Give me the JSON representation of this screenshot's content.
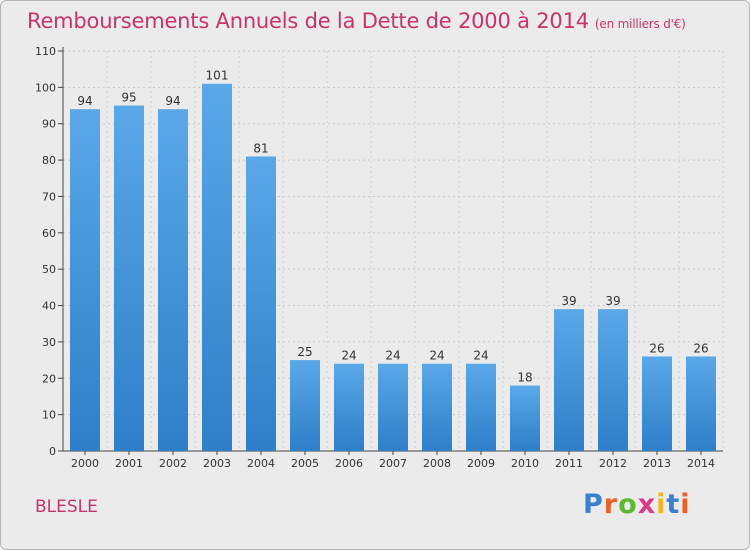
{
  "chart_data": {
    "type": "bar",
    "title": "Remboursements Annuels de la Dette de 2000 à 2014",
    "subtitle": "(en milliers d'€)",
    "categories": [
      "2000",
      "2001",
      "2002",
      "2003",
      "2004",
      "2005",
      "2006",
      "2007",
      "2008",
      "2009",
      "2010",
      "2011",
      "2012",
      "2013",
      "2014"
    ],
    "values": [
      94,
      95,
      94,
      101,
      81,
      25,
      24,
      24,
      24,
      24,
      18,
      39,
      39,
      26,
      26
    ],
    "ylim": [
      0,
      110
    ],
    "yticks": [
      0,
      10,
      20,
      30,
      40,
      50,
      60,
      70,
      80,
      90,
      100,
      110
    ],
    "grid": true,
    "data_labels": true,
    "bar_color": "#5aa8e8",
    "bar_color_dark": "#2e7fc8"
  },
  "commune": "BLESLE",
  "logo": {
    "text": "Proxiti",
    "colors": [
      "#3a7fd0",
      "#e8622a",
      "#5cb82e",
      "#d93a8a",
      "#f2b41e",
      "#3a7fd0",
      "#e8622a"
    ]
  },
  "colors": {
    "accent": "#c8336c",
    "background": "#ebebeb"
  }
}
